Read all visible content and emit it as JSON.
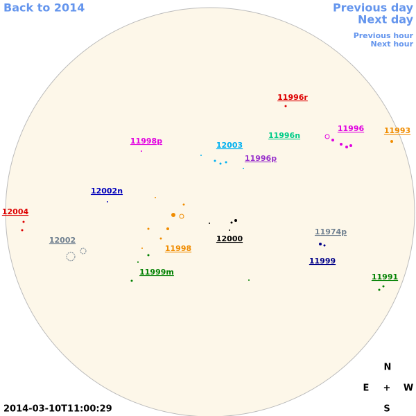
{
  "nav": {
    "back": "Back to 2014",
    "previous_day": "Previous day",
    "next_day": "Next day",
    "previous_hour": "Previous hour",
    "next_hour": "Next hour"
  },
  "regions": [
    {
      "label": "11996r",
      "color": "#dd0000"
    },
    {
      "label": "11998p",
      "color": "#e000e0"
    },
    {
      "label": "12003",
      "color": "#00b0f0"
    },
    {
      "label": "11996n",
      "color": "#00cc88"
    },
    {
      "label": "11996",
      "color": "#e000e0"
    },
    {
      "label": "11993",
      "color": "#f08c00"
    },
    {
      "label": "11996p",
      "color": "#9933cc"
    },
    {
      "label": "12002n",
      "color": "#0000bb"
    },
    {
      "label": "12004",
      "color": "#dd0000"
    },
    {
      "label": "12002",
      "color": "#708090"
    },
    {
      "label": "11998",
      "color": "#f08c00"
    },
    {
      "label": "12000",
      "color": "#000000"
    },
    {
      "label": "11974p",
      "color": "#708090"
    },
    {
      "label": "11999",
      "color": "#000088"
    },
    {
      "label": "11999m",
      "color": "#008000"
    },
    {
      "label": "11991",
      "color": "#008000"
    }
  ],
  "compass": {
    "north": "N",
    "east": "E",
    "center": "+",
    "west": "W",
    "south": "S"
  },
  "timestamp": "2014-03-10T11:00:29"
}
